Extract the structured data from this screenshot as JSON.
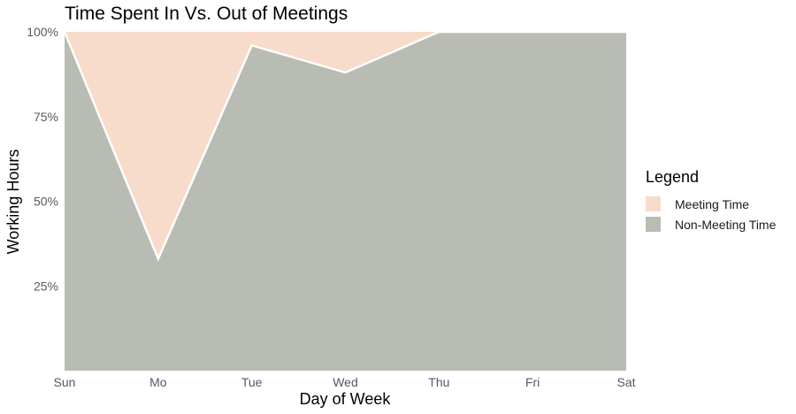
{
  "chart_data": {
    "type": "area",
    "stacked": true,
    "title": "Time Spent In Vs. Out of Meetings",
    "xlabel": "Day of Week",
    "ylabel": "Working Hours",
    "categories": [
      "Sun",
      "Mo",
      "Tue",
      "Wed",
      "Thu",
      "Fri",
      "Sat"
    ],
    "y_ticks": [
      "25%",
      "50%",
      "75%",
      "100%"
    ],
    "y_tick_values": [
      0.25,
      0.5,
      0.75,
      1.0
    ],
    "ylim": [
      0,
      1
    ],
    "grid": false,
    "legend_title": "Legend",
    "legend_position": "right",
    "series": [
      {
        "name": "Meeting Time",
        "values": [
          0.0,
          0.67,
          0.04,
          0.12,
          0.0,
          0.0,
          0.0
        ],
        "color": "#f7dbcb"
      },
      {
        "name": "Non-Meeting Time",
        "values": [
          1.0,
          0.33,
          0.96,
          0.88,
          1.0,
          1.0,
          1.0
        ],
        "color": "#b8bcb2"
      }
    ],
    "boundary_line_color": "#ffffff"
  }
}
